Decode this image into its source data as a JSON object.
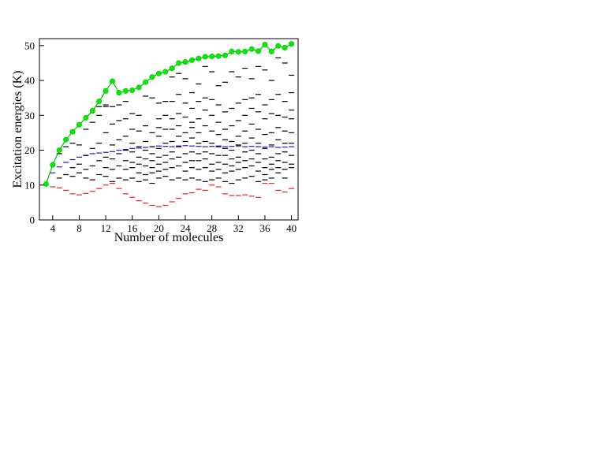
{
  "colors": {
    "axis": "#000000",
    "green_series": "#00ee00",
    "green_line": "#00bb00",
    "blue_level": "#1a1acc",
    "red_level": "#ee2222",
    "black_level": "#000000"
  },
  "chart_data": {
    "type": "scatter",
    "xlabel": "Number of molecules",
    "ylabel": "Excitation energies (K)",
    "xlim": [
      2,
      41
    ],
    "ylim": [
      0,
      52
    ],
    "xticks": [
      4,
      8,
      12,
      16,
      20,
      24,
      28,
      32,
      36,
      40
    ],
    "yticks": [
      0,
      10,
      20,
      30,
      40,
      50
    ],
    "grid": false,
    "series": [
      {
        "style": "line-markers",
        "x": [
          3,
          4,
          5,
          6,
          7,
          8,
          9,
          10,
          11,
          12,
          13,
          14,
          15,
          16,
          17,
          18,
          19,
          20,
          21,
          22,
          23,
          24,
          25,
          26,
          27,
          28,
          29,
          30,
          31,
          32,
          33,
          34,
          35,
          36,
          37,
          38,
          39,
          40
        ],
        "y": [
          10.3,
          15.8,
          20.0,
          23.0,
          25.3,
          27.3,
          29.3,
          31.3,
          34.0,
          37.0,
          39.8,
          36.5,
          37.0,
          37.2,
          38.0,
          39.5,
          41.0,
          42.0,
          42.5,
          43.5,
          45.0,
          45.3,
          45.8,
          46.3,
          46.8,
          46.9,
          47.0,
          47.2,
          48.3,
          48.2,
          48.3,
          49.0,
          48.4,
          50.3,
          48.3,
          49.9,
          49.4,
          50.5
        ]
      },
      {
        "style": "dashes",
        "x": [
          4,
          5,
          6,
          7,
          8,
          9,
          10,
          11,
          12,
          13,
          14,
          15,
          16,
          17,
          18,
          19,
          20,
          21,
          22,
          23,
          24,
          25,
          26,
          27,
          28,
          29,
          30,
          31,
          32,
          33,
          34,
          35,
          36,
          37,
          38,
          39,
          40
        ],
        "y": [
          13.5,
          15.2,
          16.5,
          17.3,
          18.0,
          18.5,
          19.0,
          19.2,
          19.4,
          19.6,
          20.0,
          20.2,
          20.5,
          20.6,
          20.8,
          21.0,
          21.2,
          21.1,
          21.0,
          21.2,
          21.3,
          21.2,
          21.1,
          21.0,
          21.1,
          21.2,
          21.0,
          21.1,
          21.2,
          21.0,
          21.1,
          21.0,
          20.9,
          21.0,
          20.8,
          20.9,
          21.0
        ]
      },
      {
        "style": "dashes",
        "x": [
          4,
          5,
          6,
          7,
          8,
          9,
          10,
          11,
          12,
          13,
          14,
          15,
          16,
          17,
          18,
          19,
          20,
          21,
          22,
          23,
          24,
          25,
          26,
          27,
          28,
          29,
          30,
          31,
          32,
          33,
          34,
          35,
          36,
          37,
          38,
          39,
          40
        ],
        "y": [
          9.5,
          9.2,
          8.5,
          7.5,
          7.2,
          7.6,
          8.2,
          9.0,
          10.0,
          10.5,
          9.0,
          7.5,
          6.5,
          5.5,
          4.8,
          4.2,
          3.8,
          4.2,
          5.2,
          6.2,
          7.5,
          7.8,
          8.8,
          8.5,
          10.0,
          9.5,
          7.5,
          7.0,
          7.0,
          7.2,
          6.8,
          6.5,
          10.5,
          10.5,
          8.5,
          8.0,
          9.0
        ]
      },
      {
        "style": "dashes",
        "x": [
          5,
          5,
          6,
          6,
          7,
          7,
          7,
          8,
          8,
          8,
          9,
          9,
          9,
          9,
          10,
          10,
          10,
          10,
          11,
          11,
          11,
          11,
          11,
          12,
          12,
          12,
          12,
          12,
          12,
          13,
          13,
          13,
          13,
          13,
          13,
          14,
          14,
          14,
          14,
          14,
          14,
          15,
          15,
          15,
          15,
          15,
          15,
          15,
          16,
          16,
          16,
          16,
          16,
          16,
          16,
          17,
          17,
          17,
          17,
          17,
          17,
          17,
          18,
          18,
          18,
          18,
          18,
          18,
          18,
          18,
          19,
          19,
          19,
          19,
          19,
          19,
          19,
          19,
          20,
          20,
          20,
          20,
          20,
          20,
          20,
          20,
          20,
          21,
          21,
          21,
          21,
          21,
          21,
          21,
          21,
          22,
          22,
          22,
          22,
          22,
          22,
          22,
          22,
          22,
          23,
          23,
          23,
          23,
          23,
          23,
          23,
          23,
          23,
          24,
          24,
          24,
          24,
          24,
          24,
          24,
          24,
          24,
          25,
          25,
          25,
          25,
          25,
          25,
          25,
          25,
          25,
          26,
          26,
          26,
          26,
          26,
          26,
          26,
          26,
          26,
          27,
          27,
          27,
          27,
          27,
          27,
          27,
          27,
          27,
          28,
          28,
          28,
          28,
          28,
          28,
          28,
          28,
          28,
          29,
          29,
          29,
          29,
          29,
          29,
          29,
          29,
          29,
          30,
          30,
          30,
          30,
          30,
          30,
          30,
          30,
          30,
          31,
          31,
          31,
          31,
          31,
          31,
          31,
          31,
          31,
          32,
          32,
          32,
          32,
          32,
          32,
          32,
          32,
          32,
          33,
          33,
          33,
          33,
          33,
          33,
          33,
          33,
          33,
          34,
          34,
          34,
          34,
          34,
          34,
          34,
          34,
          34,
          35,
          35,
          35,
          35,
          35,
          35,
          35,
          35,
          35,
          36,
          36,
          36,
          36,
          36,
          36,
          36,
          36,
          36,
          37,
          37,
          37,
          37,
          37,
          37,
          37,
          37,
          37,
          38,
          38,
          38,
          38,
          38,
          38,
          38,
          38,
          38,
          39,
          39,
          39,
          39,
          39,
          39,
          39,
          39,
          39,
          40,
          40,
          40,
          40,
          40,
          40,
          40,
          40,
          40
        ],
        "y": [
          12.0,
          19.0,
          13.0,
          21.0,
          12.5,
          15.0,
          22.0,
          13.5,
          16.0,
          21.5,
          12.0,
          14.5,
          18.5,
          26.0,
          11.5,
          15.5,
          20.5,
          28.0,
          13.0,
          17.0,
          22.0,
          30.0,
          32.5,
          12.5,
          15.0,
          18.0,
          25.0,
          32.5,
          33.0,
          11.0,
          14.5,
          17.5,
          21.5,
          27.5,
          32.5,
          12.0,
          15.5,
          19.0,
          23.0,
          28.5,
          33.0,
          11.5,
          14.5,
          17.0,
          20.0,
          24.0,
          29.0,
          34.0,
          12.0,
          15.0,
          16.5,
          19.5,
          22.0,
          26.0,
          30.5,
          11.0,
          13.5,
          16.0,
          18.0,
          21.0,
          25.5,
          30.0,
          11.5,
          13.0,
          15.5,
          17.5,
          20.0,
          22.5,
          27.0,
          35.5,
          10.5,
          13.5,
          15.0,
          17.0,
          19.0,
          21.0,
          25.0,
          35.0,
          12.0,
          14.0,
          16.0,
          18.0,
          20.5,
          24.0,
          26.5,
          29.0,
          33.5,
          12.5,
          14.5,
          16.5,
          18.5,
          22.0,
          26.0,
          30.0,
          34.0,
          11.5,
          15.0,
          17.5,
          19.5,
          22.5,
          26.0,
          29.0,
          34.0,
          41.0,
          12.0,
          15.5,
          18.0,
          21.0,
          24.0,
          27.0,
          30.5,
          36.0,
          42.0,
          11.5,
          14.0,
          16.5,
          19.0,
          22.5,
          25.0,
          29.5,
          33.5,
          40.5,
          12.0,
          15.0,
          17.0,
          19.5,
          23.5,
          26.5,
          28.0,
          32.0,
          36.5,
          11.5,
          14.5,
          17.0,
          19.0,
          22.0,
          25.0,
          29.0,
          34.0,
          39.0,
          11.0,
          15.0,
          17.5,
          19.5,
          22.5,
          27.0,
          31.5,
          35.0,
          44.0,
          11.5,
          14.0,
          16.0,
          19.0,
          22.0,
          25.5,
          30.0,
          34.5,
          42.5,
          12.0,
          14.5,
          16.5,
          18.5,
          21.0,
          24.5,
          28.0,
          33.0,
          38.5,
          11.0,
          13.5,
          16.0,
          18.5,
          20.5,
          23.0,
          26.0,
          31.0,
          39.5,
          10.5,
          14.0,
          15.5,
          17.5,
          20.0,
          22.5,
          27.0,
          32.0,
          42.5,
          11.5,
          14.5,
          16.5,
          18.0,
          21.5,
          24.0,
          28.5,
          33.5,
          41.0,
          12.0,
          15.0,
          17.0,
          19.5,
          22.0,
          25.5,
          30.0,
          34.5,
          43.5,
          12.5,
          15.5,
          17.5,
          20.0,
          23.5,
          27.5,
          32.0,
          35.0,
          40.5,
          11.0,
          14.0,
          16.5,
          19.0,
          22.0,
          26.0,
          31.0,
          36.0,
          44.0,
          11.5,
          13.0,
          15.0,
          17.5,
          20.5,
          24.5,
          29.0,
          33.0,
          43.0,
          12.0,
          14.5,
          16.0,
          18.0,
          21.5,
          25.0,
          30.5,
          34.5,
          40.0,
          13.5,
          15.0,
          17.0,
          19.0,
          23.0,
          26.5,
          30.0,
          36.0,
          46.5,
          12.0,
          14.5,
          16.5,
          19.5,
          22.0,
          25.5,
          29.5,
          34.0,
          45.0,
          15.0,
          16.0,
          18.5,
          22.0,
          25.0,
          29.0,
          31.5,
          36.5,
          41.5
        ]
      }
    ]
  }
}
